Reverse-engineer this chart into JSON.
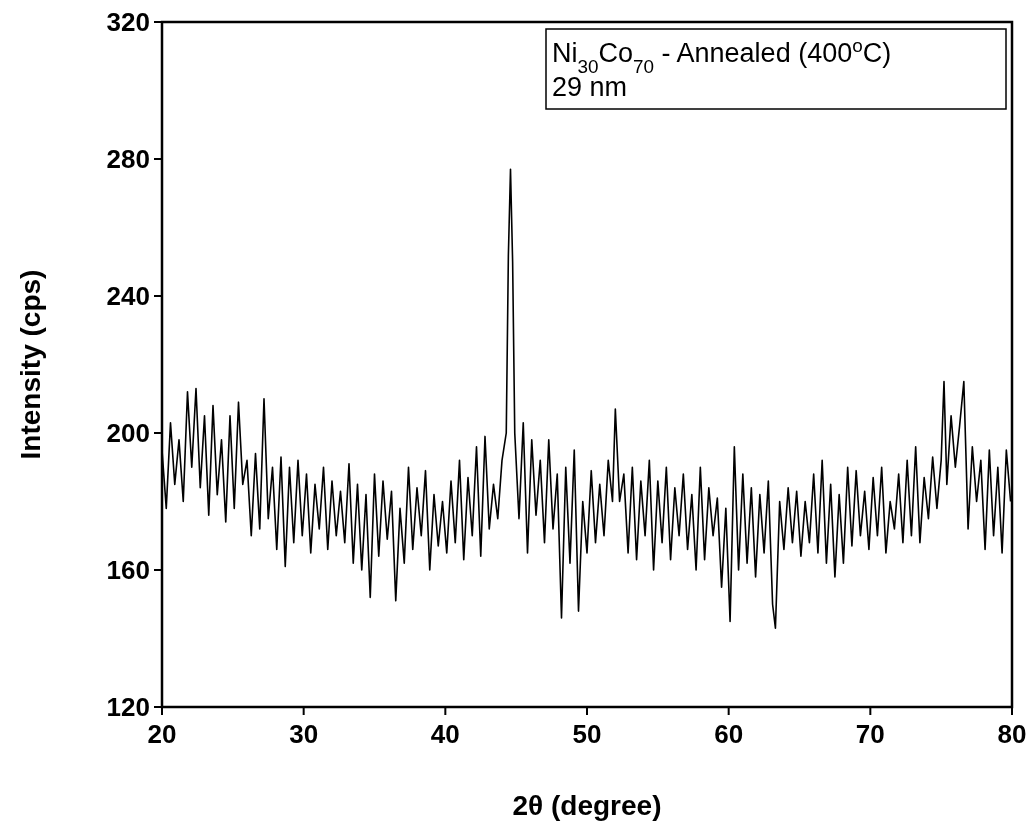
{
  "chart_data": {
    "type": "line",
    "xlabel": "2θ (degree)",
    "ylabel": "Intensity (cps)",
    "annotations": [
      "Ni$_{30}$Co$_{70}$ - Annealed (400$^{o}$C)",
      "29 nm"
    ],
    "xlim": [
      20,
      80
    ],
    "xticks": [
      20,
      30,
      40,
      50,
      60,
      70,
      80
    ],
    "ylim": [
      120,
      320
    ],
    "yticks": [
      120,
      160,
      200,
      240,
      280,
      320
    ],
    "grid": false,
    "line_style": "solid",
    "series": [
      {
        "color": "#000000",
        "x": [
          20.0,
          20.3,
          20.6,
          20.9,
          21.2,
          21.5,
          21.8,
          22.1,
          22.4,
          22.7,
          23.0,
          23.3,
          23.6,
          23.9,
          24.2,
          24.5,
          24.8,
          25.1,
          25.4,
          25.7,
          26.0,
          26.3,
          26.6,
          26.9,
          27.2,
          27.5,
          27.8,
          28.1,
          28.4,
          28.7,
          29.0,
          29.3,
          29.6,
          29.9,
          30.2,
          30.5,
          30.8,
          31.1,
          31.4,
          31.7,
          32.0,
          32.3,
          32.6,
          32.9,
          33.2,
          33.5,
          33.8,
          34.1,
          34.4,
          34.7,
          35.0,
          35.3,
          35.6,
          35.9,
          36.2,
          36.5,
          36.8,
          37.1,
          37.4,
          37.7,
          38.0,
          38.3,
          38.6,
          38.9,
          39.2,
          39.5,
          39.8,
          40.1,
          40.4,
          40.7,
          41.0,
          41.3,
          41.6,
          41.9,
          42.2,
          42.5,
          42.8,
          43.1,
          43.4,
          43.7,
          44.0,
          44.3,
          44.45,
          44.6,
          44.75,
          44.9,
          45.2,
          45.5,
          45.8,
          46.1,
          46.4,
          46.7,
          47.0,
          47.3,
          47.6,
          47.9,
          48.2,
          48.5,
          48.8,
          49.1,
          49.4,
          49.7,
          50.0,
          50.3,
          50.6,
          50.9,
          51.2,
          51.5,
          51.8,
          52.0,
          52.3,
          52.6,
          52.9,
          53.2,
          53.5,
          53.8,
          54.1,
          54.4,
          54.7,
          55.0,
          55.3,
          55.6,
          55.9,
          56.2,
          56.5,
          56.8,
          57.1,
          57.4,
          57.7,
          58.0,
          58.3,
          58.6,
          58.9,
          59.2,
          59.5,
          59.8,
          60.1,
          60.4,
          60.7,
          61.0,
          61.3,
          61.6,
          61.9,
          62.2,
          62.5,
          62.8,
          63.1,
          63.3,
          63.6,
          63.9,
          64.2,
          64.5,
          64.8,
          65.1,
          65.4,
          65.7,
          66.0,
          66.3,
          66.6,
          66.9,
          67.2,
          67.5,
          67.8,
          68.1,
          68.4,
          68.7,
          69.0,
          69.3,
          69.6,
          69.9,
          70.2,
          70.5,
          70.8,
          71.1,
          71.4,
          71.7,
          72.0,
          72.3,
          72.6,
          72.9,
          73.2,
          73.5,
          73.8,
          74.1,
          74.4,
          74.7,
          75.0,
          75.2,
          75.4,
          75.7,
          76.0,
          76.3,
          76.6,
          76.9,
          77.2,
          77.5,
          77.8,
          78.1,
          78.4,
          78.7,
          79.0,
          79.3,
          79.6,
          79.9
        ],
        "values": [
          195,
          178,
          203,
          185,
          198,
          180,
          212,
          190,
          213,
          184,
          205,
          176,
          208,
          182,
          198,
          174,
          205,
          178,
          209,
          185,
          192,
          170,
          194,
          172,
          210,
          175,
          190,
          166,
          193,
          161,
          190,
          168,
          192,
          170,
          188,
          165,
          185,
          172,
          190,
          166,
          186,
          170,
          183,
          168,
          191,
          162,
          185,
          160,
          182,
          152,
          188,
          164,
          186,
          169,
          183,
          151,
          178,
          162,
          190,
          166,
          184,
          170,
          189,
          160,
          182,
          167,
          180,
          165,
          186,
          168,
          192,
          163,
          187,
          170,
          196,
          164,
          199,
          172,
          185,
          175,
          192,
          200,
          252,
          277,
          250,
          200,
          175,
          203,
          165,
          198,
          176,
          192,
          168,
          198,
          172,
          188,
          146,
          190,
          162,
          195,
          148,
          180,
          165,
          189,
          168,
          185,
          170,
          192,
          180,
          207,
          180,
          188,
          165,
          190,
          163,
          186,
          170,
          192,
          160,
          186,
          168,
          190,
          163,
          184,
          170,
          188,
          166,
          182,
          160,
          190,
          163,
          184,
          170,
          181,
          155,
          178,
          145,
          196,
          160,
          188,
          162,
          184,
          158,
          182,
          165,
          186,
          150,
          143,
          180,
          166,
          184,
          168,
          183,
          164,
          180,
          168,
          188,
          165,
          192,
          162,
          185,
          158,
          182,
          162,
          190,
          167,
          189,
          170,
          183,
          166,
          187,
          170,
          190,
          165,
          180,
          172,
          188,
          168,
          192,
          170,
          196,
          168,
          187,
          175,
          193,
          178,
          192,
          215,
          185,
          205,
          190,
          202,
          215,
          172,
          196,
          180,
          192,
          166,
          195,
          170,
          190,
          165,
          195,
          180
        ]
      }
    ]
  }
}
